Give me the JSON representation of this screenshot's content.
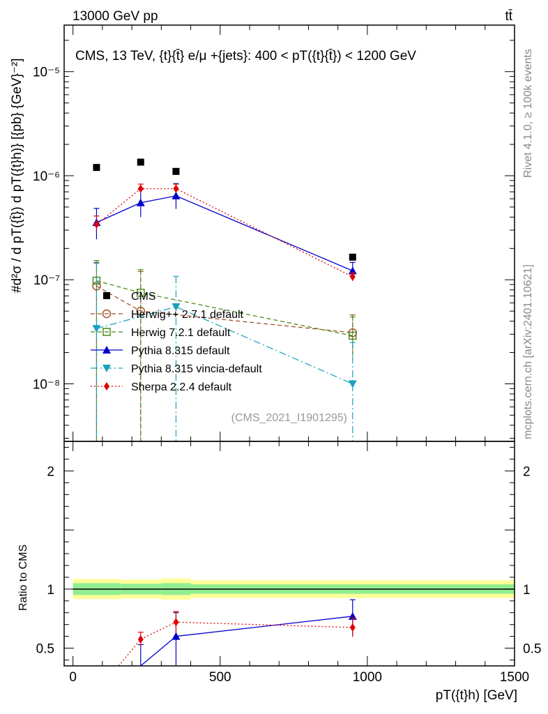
{
  "header": {
    "energy_label": "13000 GeV pp",
    "process_label": "tt̄",
    "side_label_top": "Rivet 4.1.0, ≥ 100k events",
    "side_label_bottom": "mcplots.cern.ch [arXiv:2401.10621]"
  },
  "chart_data": [
    {
      "type": "scatter",
      "title": "CMS, 13 TeV, {t}{t̄} e/μ +{jets}: 400 <  pT({t}{t̄}) < 1200 GeV",
      "analysis_id": "(CMS_2021_I1901295)",
      "ylabel": "#d²σ / d pT({t̄}) d pT({t}h)} [{pb} {GeV}⁻²]",
      "yscale": "log",
      "ylim": [
        2.8e-09,
        2.8e-05
      ],
      "xlim": [
        -30,
        1500
      ],
      "y_ticks": [
        {
          "value": 1e-05,
          "label": "10⁻⁵"
        },
        {
          "value": 1e-06,
          "label": "10⁻⁶"
        },
        {
          "value": 1e-07,
          "label": "10⁻⁷"
        },
        {
          "value": 1e-08,
          "label": "10⁻⁸"
        }
      ],
      "series": [
        {
          "name": "CMS",
          "color": "#000000",
          "marker": "square",
          "line": "none",
          "x": [
            80,
            230,
            350,
            950
          ],
          "y": [
            1.2e-06,
            1.35e-06,
            1.1e-06,
            1.65e-07
          ],
          "err_lo": [
            0,
            0,
            0,
            0
          ],
          "err_hi": [
            0,
            0,
            0,
            0
          ]
        },
        {
          "name": "Herwig++ 2.7.1 default",
          "color": "#a0522d",
          "marker": "open-circle",
          "line": "dash",
          "x": [
            80,
            230,
            350,
            950
          ],
          "y": [
            8.7e-08,
            5e-08,
            null,
            3.1e-08
          ],
          "err_lo": [
            8.5e-08,
            4.9e-08,
            0,
            1.2e-08
          ],
          "err_hi": [
            6e-08,
            7e-08,
            0,
            1.5e-08
          ]
        },
        {
          "name": "Herwig 7.2.1 default",
          "color": "#4a8a1c",
          "marker": "open-square",
          "line": "dash",
          "x": [
            80,
            230,
            350,
            950
          ],
          "y": [
            9.8e-08,
            7.5e-08,
            null,
            2.9e-08
          ],
          "err_lo": [
            9.6e-08,
            7.4e-08,
            0,
            1.2e-08
          ],
          "err_hi": [
            5.5e-08,
            5e-08,
            0,
            1.5e-08
          ]
        },
        {
          "name": "Pythia 8.315 default",
          "color": "#0000cc",
          "marker": "triangle-up",
          "line": "solid",
          "x": [
            80,
            230,
            350,
            950
          ],
          "y": [
            3.55e-07,
            5.5e-07,
            6.4e-07,
            1.22e-07
          ],
          "err_lo": [
            1.1e-07,
            1.5e-07,
            1.6e-07,
            2e-08
          ],
          "err_hi": [
            1.3e-07,
            1.9e-07,
            2e-07,
            2.5e-08
          ]
        },
        {
          "name": "Pythia 8.315 vincia-default",
          "color": "#1a9fbf",
          "marker": "triangle-down",
          "line": "dashdot",
          "x": [
            80,
            230,
            350,
            950
          ],
          "y": [
            3.4e-08,
            null,
            5.5e-08,
            1e-08
          ],
          "err_lo": [
            3.38e-08,
            0,
            5.48e-08,
            9.9e-09
          ],
          "err_hi": [
            1.1e-07,
            0,
            5.3e-08,
            1.5e-08
          ]
        },
        {
          "name": "Sherpa 2.2.4 default",
          "color": "#e00000",
          "marker": "diamond",
          "line": "dot",
          "x": [
            80,
            230,
            350,
            950
          ],
          "y": [
            3.4e-07,
            7.5e-07,
            7.5e-07,
            1.07e-07
          ],
          "err_lo": [
            6e-08,
            8e-08,
            8e-08,
            1e-08
          ],
          "err_hi": [
            7e-08,
            8e-08,
            8e-08,
            1e-08
          ]
        }
      ]
    },
    {
      "type": "line",
      "ylabel": "Ratio to CMS",
      "xlabel": "pT({t}h) [GeV]",
      "ylim": [
        0.35,
        2.25
      ],
      "xlim": [
        -30,
        1500
      ],
      "x_ticks": [
        0,
        500,
        1000,
        1500
      ],
      "y_ticks": [
        {
          "value": 0.5,
          "label": "0.5"
        },
        {
          "value": 1,
          "label": "1"
        },
        {
          "value": 2,
          "label": "2"
        }
      ],
      "band": {
        "x_edges": [
          0,
          160,
          300,
          400,
          1500
        ],
        "inner": [
          0.05,
          0.045,
          0.05,
          0.04
        ],
        "outer": [
          0.085,
          0.08,
          0.09,
          0.075
        ]
      },
      "series": [
        {
          "name": "Pythia 8.315 default",
          "color": "#0000cc",
          "marker": "triangle-up",
          "line": "solid",
          "x": [
            230,
            350,
            950
          ],
          "y": [
            0.35,
            0.6,
            0.77
          ],
          "err_lo": [
            0.0,
            0.25,
            0.16
          ],
          "err_hi": [
            0.18,
            0.2,
            0.14
          ]
        },
        {
          "name": "Sherpa 2.2.4 default",
          "color": "#e00000",
          "marker": "diamond",
          "line": "dot",
          "x": [
            155,
            230,
            350,
            950
          ],
          "y": [
            0.35,
            0.575,
            0.72,
            0.675
          ],
          "err_lo": [
            0,
            0.06,
            0.09,
            0.08
          ],
          "err_hi": [
            0,
            0.06,
            0.09,
            0.08
          ]
        }
      ]
    }
  ]
}
